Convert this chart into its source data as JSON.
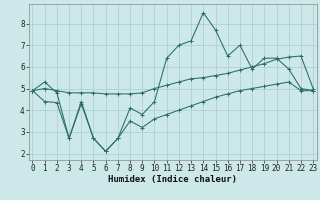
{
  "xlabel": "Humidex (Indice chaleur)",
  "background_color": "#cce8e8",
  "grid_color": "#aacccc",
  "line_color": "#2a6b6b",
  "x": [
    0,
    1,
    2,
    3,
    4,
    5,
    6,
    7,
    8,
    9,
    10,
    11,
    12,
    13,
    14,
    15,
    16,
    17,
    18,
    19,
    20,
    21,
    22,
    23
  ],
  "y_main": [
    4.9,
    5.3,
    4.8,
    2.7,
    4.4,
    2.7,
    2.1,
    2.7,
    4.1,
    3.8,
    4.4,
    6.4,
    7.0,
    7.2,
    8.5,
    7.7,
    6.5,
    7.0,
    5.9,
    6.4,
    6.4,
    5.9,
    5.0,
    4.9
  ],
  "y_upper": [
    4.9,
    5.0,
    4.9,
    4.8,
    4.8,
    4.8,
    4.75,
    4.75,
    4.75,
    4.8,
    5.0,
    5.15,
    5.3,
    5.45,
    5.5,
    5.6,
    5.7,
    5.85,
    6.0,
    6.15,
    6.35,
    6.45,
    6.5,
    5.0
  ],
  "y_lower": [
    4.9,
    4.4,
    4.35,
    2.7,
    4.3,
    2.7,
    2.1,
    2.7,
    3.5,
    3.2,
    3.6,
    3.8,
    4.0,
    4.2,
    4.4,
    4.6,
    4.75,
    4.9,
    5.0,
    5.1,
    5.2,
    5.3,
    4.9,
    4.9
  ],
  "xlim": [
    0,
    23
  ],
  "ylim": [
    1.7,
    8.9
  ],
  "yticks": [
    2,
    3,
    4,
    5,
    6,
    7,
    8
  ],
  "xticks": [
    0,
    1,
    2,
    3,
    4,
    5,
    6,
    7,
    8,
    9,
    10,
    11,
    12,
    13,
    14,
    15,
    16,
    17,
    18,
    19,
    20,
    21,
    22,
    23
  ],
  "tick_fontsize": 5.5,
  "xlabel_fontsize": 6.5,
  "linewidth": 0.75,
  "markersize": 2.5
}
